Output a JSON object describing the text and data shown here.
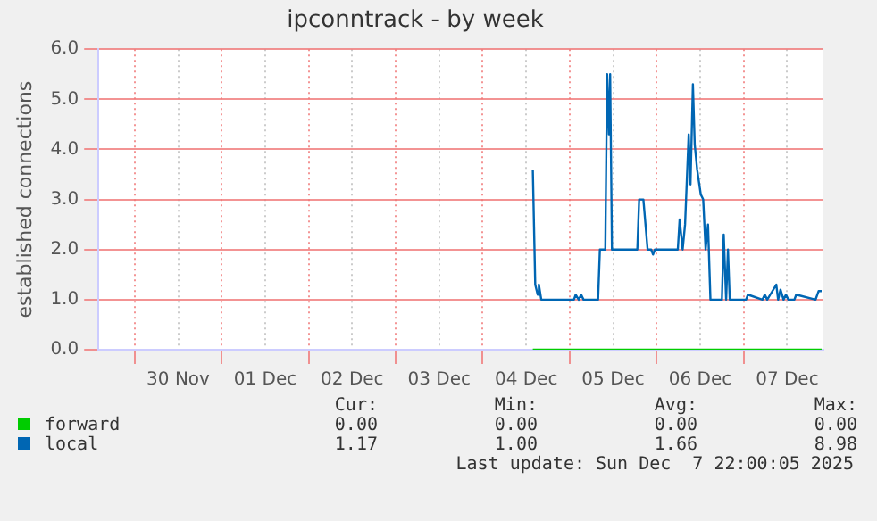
{
  "chart_data": {
    "type": "line",
    "title": "ipconntrack - by week",
    "ylabel": "established connections",
    "xlim": [
      "2025-11-29T14:00",
      "2025-12-07T22:00"
    ],
    "xticks": [
      {
        "value": "2025-11-30T00:00",
        "label": null
      },
      {
        "value": "2025-11-30T12:00",
        "label": "30 Nov"
      },
      {
        "value": "2025-12-01T00:00",
        "label": null
      },
      {
        "value": "2025-12-01T12:00",
        "label": "01 Dec"
      },
      {
        "value": "2025-12-02T00:00",
        "label": null
      },
      {
        "value": "2025-12-02T12:00",
        "label": "02 Dec"
      },
      {
        "value": "2025-12-03T00:00",
        "label": null
      },
      {
        "value": "2025-12-03T12:00",
        "label": "03 Dec"
      },
      {
        "value": "2025-12-04T00:00",
        "label": null
      },
      {
        "value": "2025-12-04T12:00",
        "label": "04 Dec"
      },
      {
        "value": "2025-12-05T00:00",
        "label": null
      },
      {
        "value": "2025-12-05T12:00",
        "label": "05 Dec"
      },
      {
        "value": "2025-12-06T00:00",
        "label": null
      },
      {
        "value": "2025-12-06T12:00",
        "label": "06 Dec"
      },
      {
        "value": "2025-12-07T00:00",
        "label": null
      },
      {
        "value": "2025-12-07T12:00",
        "label": "07 Dec"
      }
    ],
    "ylim": [
      0,
      6
    ],
    "yticks": [
      {
        "value": 0,
        "label": "0.0"
      },
      {
        "value": 1,
        "label": "1.0"
      },
      {
        "value": 2,
        "label": "2.0"
      },
      {
        "value": 3,
        "label": "3.0"
      },
      {
        "value": 4,
        "label": "4.0"
      },
      {
        "value": 5,
        "label": "5.0"
      },
      {
        "value": 6,
        "label": "6.0"
      }
    ],
    "grid": true,
    "legend": "bottom",
    "marker": "none",
    "line_style": "solid",
    "series": [
      {
        "name": "forward",
        "color": "#00cc00",
        "x": [
          "2025-12-04T13:50",
          "2025-12-07T21:30"
        ],
        "values": [
          0,
          0
        ]
      },
      {
        "name": "local",
        "color": "#0066b3",
        "x": [
          "2025-12-04T13:50",
          "2025-12-04T14:30",
          "2025-12-04T15:10",
          "2025-12-04T15:30",
          "2025-12-04T16:10",
          "2025-12-05T01:10",
          "2025-12-05T01:40",
          "2025-12-05T02:30",
          "2025-12-05T03:10",
          "2025-12-05T03:50",
          "2025-12-05T07:50",
          "2025-12-05T08:20",
          "2025-12-05T09:50",
          "2025-12-05T10:20",
          "2025-12-05T10:50",
          "2025-12-05T11:10",
          "2025-12-05T11:40",
          "2025-12-05T18:40",
          "2025-12-05T19:10",
          "2025-12-05T20:20",
          "2025-12-05T21:30",
          "2025-12-05T22:30",
          "2025-12-05T23:00",
          "2025-12-05T23:30",
          "2025-12-06T05:50",
          "2025-12-06T06:20",
          "2025-12-06T07:10",
          "2025-12-06T07:50",
          "2025-12-06T08:50",
          "2025-12-06T09:20",
          "2025-12-06T10:00",
          "2025-12-06T10:30",
          "2025-12-06T11:10",
          "2025-12-06T12:10",
          "2025-12-06T12:50",
          "2025-12-06T13:30",
          "2025-12-06T14:10",
          "2025-12-06T14:50",
          "2025-12-06T18:00",
          "2025-12-06T18:30",
          "2025-12-06T19:10",
          "2025-12-06T19:40",
          "2025-12-06T20:10",
          "2025-12-07T00:40",
          "2025-12-07T01:10",
          "2025-12-07T05:10",
          "2025-12-07T05:50",
          "2025-12-07T06:30",
          "2025-12-07T07:20",
          "2025-12-07T09:00",
          "2025-12-07T09:30",
          "2025-12-07T10:10",
          "2025-12-07T11:00",
          "2025-12-07T11:40",
          "2025-12-07T12:20",
          "2025-12-07T14:00",
          "2025-12-07T14:30",
          "2025-12-07T19:50",
          "2025-12-07T20:40",
          "2025-12-07T21:30"
        ],
        "values": [
          3.6,
          1.3,
          1.1,
          1.3,
          1.0,
          1.0,
          1.1,
          1.0,
          1.1,
          1.0,
          1.0,
          2.0,
          2.0,
          5.5,
          4.3,
          5.5,
          2.0,
          2.0,
          3.0,
          3.0,
          2.0,
          2.0,
          1.9,
          2.0,
          2.0,
          2.6,
          2.0,
          2.5,
          4.3,
          3.3,
          5.3,
          4.1,
          3.6,
          3.1,
          3.0,
          2.0,
          2.5,
          1.0,
          1.0,
          2.3,
          1.0,
          2.0,
          1.0,
          1.0,
          1.1,
          1.0,
          1.1,
          1.0,
          1.1,
          1.3,
          1.0,
          1.2,
          1.0,
          1.1,
          1.0,
          1.0,
          1.1,
          1.0,
          1.17,
          1.17
        ]
      }
    ],
    "annotations": [
      "Cur:",
      "Min:",
      "Avg:",
      "Max:",
      "0.00",
      "0.00",
      "0.00",
      "0.00",
      "1.17",
      "1.00",
      "1.66",
      "8.98",
      "Last update: Sun Dec  7 22:00:05 2025"
    ]
  }
}
